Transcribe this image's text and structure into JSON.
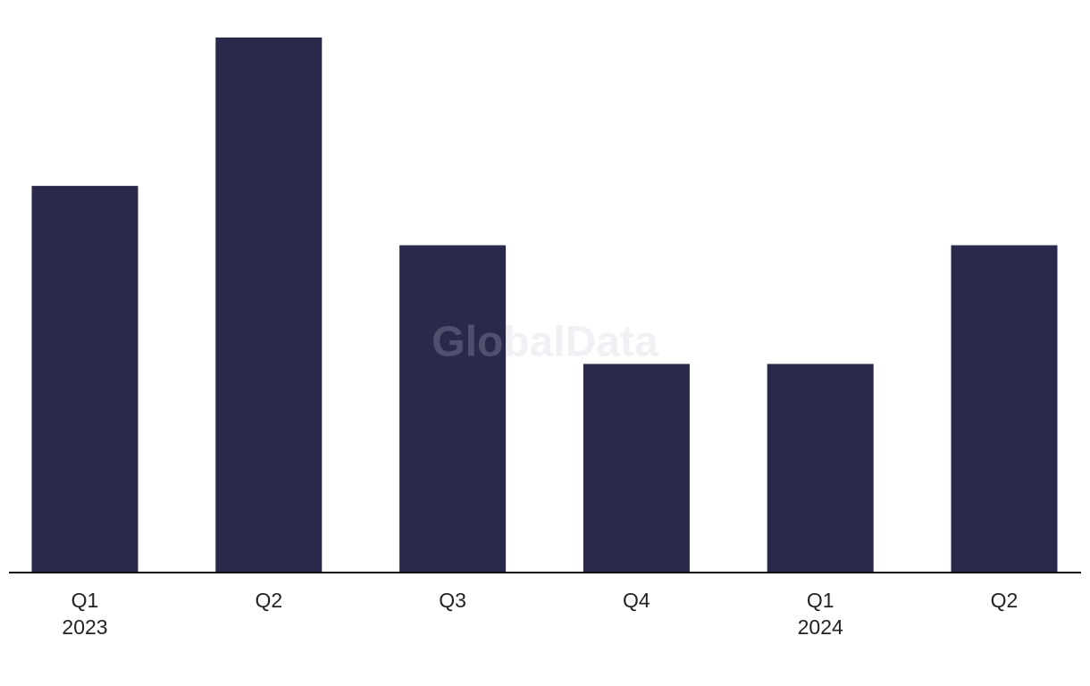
{
  "chart_data": {
    "type": "bar",
    "watermark": "GlobalData",
    "categories": [
      "Q1",
      "Q2",
      "Q3",
      "Q4",
      "Q1",
      "Q2"
    ],
    "years": [
      "2023",
      null,
      null,
      null,
      "2024",
      null
    ],
    "values": [
      13,
      18,
      11,
      7,
      7,
      11
    ],
    "color": "#29294b",
    "ylim": [
      0,
      18
    ]
  }
}
